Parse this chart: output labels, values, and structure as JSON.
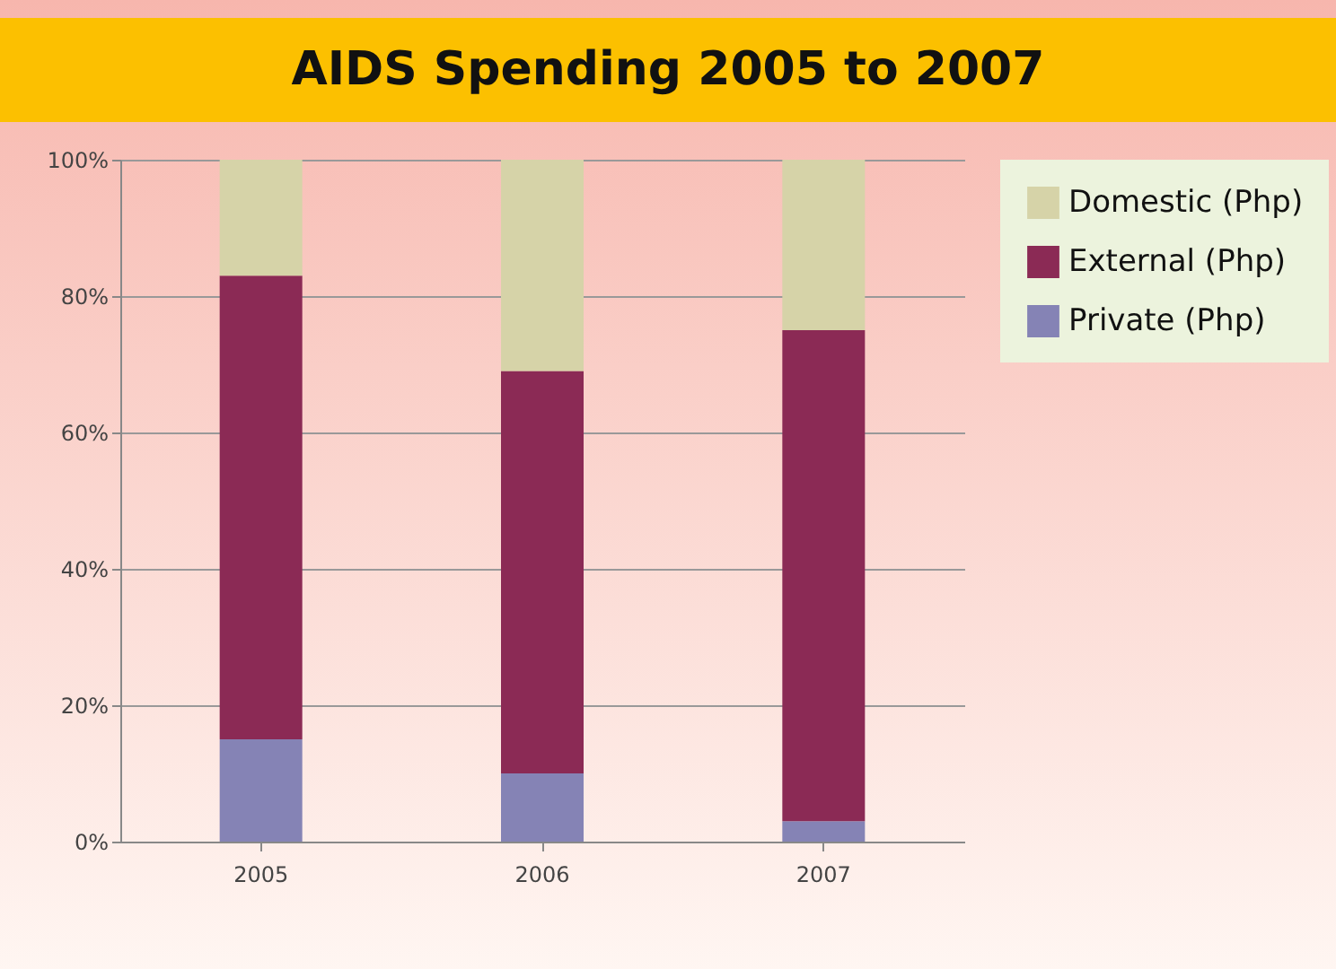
{
  "chart_data": {
    "type": "bar",
    "title": "AIDS Spending 2005 to 2007",
    "categories": [
      "2005",
      "2006",
      "2007"
    ],
    "stacked": true,
    "series": [
      {
        "name": "Private (Php)",
        "color": "#8583b5",
        "values": [
          15,
          10,
          3
        ]
      },
      {
        "name": "External (Php)",
        "color": "#8b2a55",
        "values": [
          68,
          59,
          72
        ]
      },
      {
        "name": "Domestic (Php)",
        "color": "#d6d3a8",
        "values": [
          17,
          31,
          25
        ]
      }
    ],
    "ylim": [
      0,
      100
    ],
    "yticks": [
      {
        "value": 0,
        "label": "0%"
      },
      {
        "value": 20,
        "label": "20%"
      },
      {
        "value": 40,
        "label": "40%"
      },
      {
        "value": 60,
        "label": "60%"
      },
      {
        "value": 80,
        "label": "80%"
      },
      {
        "value": 100,
        "label": "100%"
      }
    ],
    "grid": "y",
    "legend": "right"
  }
}
